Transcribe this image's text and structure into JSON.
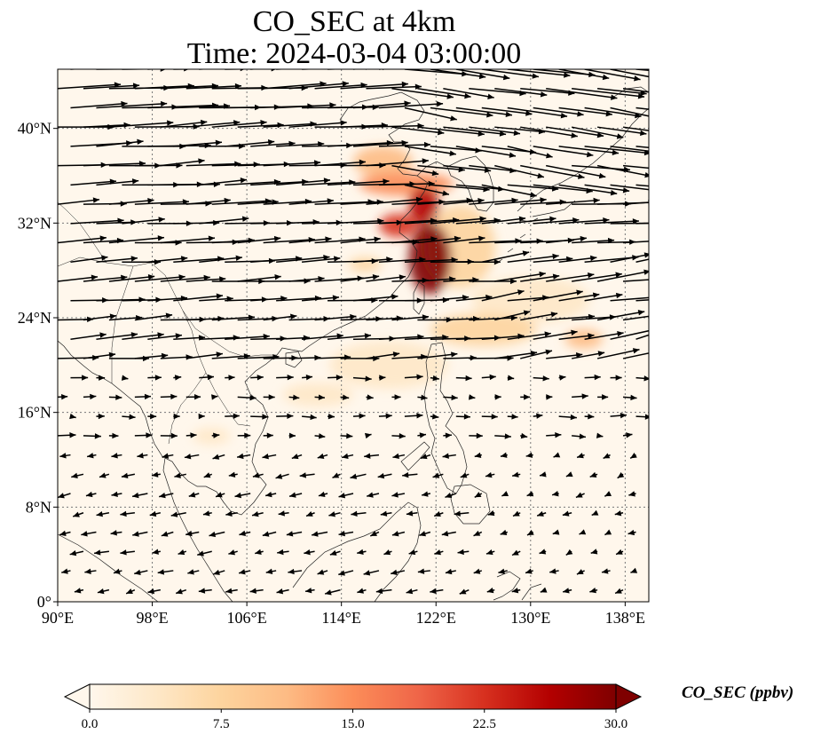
{
  "title": {
    "line1": "CO_SEC at 4km",
    "line2": "Time: 2024-03-04 03:00:00"
  },
  "map": {
    "lon_range": [
      90,
      140
    ],
    "lat_range": [
      0,
      45
    ],
    "lon_ticks": [
      {
        "value": 90,
        "label": "90°E"
      },
      {
        "value": 98,
        "label": "98°E"
      },
      {
        "value": 106,
        "label": "106°E"
      },
      {
        "value": 114,
        "label": "114°E"
      },
      {
        "value": 122,
        "label": "122°E"
      },
      {
        "value": 130,
        "label": "130°E"
      },
      {
        "value": 138,
        "label": "138°E"
      }
    ],
    "lat_ticks": [
      {
        "value": 0,
        "label": "0°"
      },
      {
        "value": 8,
        "label": "8°N"
      },
      {
        "value": 16,
        "label": "16°N"
      },
      {
        "value": 24,
        "label": "24°N"
      },
      {
        "value": 32,
        "label": "32°N"
      },
      {
        "value": 40,
        "label": "40°N"
      }
    ],
    "gridlines": true,
    "colormap": [
      "#fff7ec",
      "#fee8c8",
      "#fdd49e",
      "#fdbb84",
      "#fc8d59",
      "#ef6548",
      "#d7301f",
      "#b30000",
      "#7f0000"
    ],
    "plumes": [
      {
        "lon": 121.5,
        "lat": 29.0,
        "sx": 1.8,
        "sy": 3.0,
        "value": 30
      },
      {
        "lon": 118.8,
        "lat": 31.8,
        "sx": 1.6,
        "sy": 1.0,
        "value": 24
      },
      {
        "lon": 121.0,
        "lat": 33.5,
        "sx": 1.3,
        "sy": 1.6,
        "value": 27
      },
      {
        "lon": 119.5,
        "lat": 35.3,
        "sx": 4.0,
        "sy": 1.0,
        "value": 15
      },
      {
        "lon": 117.5,
        "lat": 37.2,
        "sx": 2.5,
        "sy": 1.3,
        "value": 10
      },
      {
        "lon": 116.0,
        "lat": 28.5,
        "sx": 1.4,
        "sy": 0.6,
        "value": 7
      },
      {
        "lon": 124.0,
        "lat": 30.0,
        "sx": 3.0,
        "sy": 3.5,
        "value": 9
      },
      {
        "lon": 126.0,
        "lat": 23.0,
        "sx": 4.5,
        "sy": 1.4,
        "value": 6
      },
      {
        "lon": 134.5,
        "lat": 22.2,
        "sx": 1.6,
        "sy": 0.8,
        "value": 10
      },
      {
        "lon": 130.0,
        "lat": 25.5,
        "sx": 5.0,
        "sy": 2.0,
        "value": 4
      },
      {
        "lon": 118.0,
        "lat": 20.0,
        "sx": 5.0,
        "sy": 2.0,
        "value": 4
      },
      {
        "lon": 103.0,
        "lat": 14.0,
        "sx": 1.6,
        "sy": 0.7,
        "value": 5
      },
      {
        "lon": 112.0,
        "lat": 17.5,
        "sx": 3.0,
        "sy": 1.0,
        "value": 3
      }
    ],
    "wind_field": {
      "lon_range": [
        90,
        140
      ],
      "lat_range": [
        1,
        45
      ],
      "rows": 28,
      "cols": 23
    }
  },
  "colorbar": {
    "label": "CO_SEC (ppbv)",
    "min": 0.0,
    "max": 30.0,
    "extend": "both",
    "ticks": [
      {
        "value": 0.0,
        "label": "0.0"
      },
      {
        "value": 7.5,
        "label": "7.5"
      },
      {
        "value": 15.0,
        "label": "15.0"
      },
      {
        "value": 22.5,
        "label": "22.5"
      },
      {
        "value": 30.0,
        "label": "30.0"
      }
    ]
  }
}
